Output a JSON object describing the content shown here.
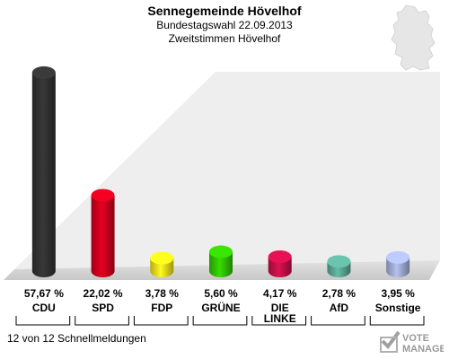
{
  "header": {
    "title": "Sennegemeinde Hövelhof",
    "subtitle1": "Bundestagswahl 22.09.2013",
    "subtitle2": "Zweitstimmen Hövelhof"
  },
  "footer": {
    "text": "12 von 12 Schnellmeldungen"
  },
  "logo": {
    "line1": "VOTE",
    "line2": "MANAGER"
  },
  "chart_data": {
    "type": "bar",
    "title": "Sennegemeinde Hövelhof",
    "categories": [
      "CDU",
      "SPD",
      "FDP",
      "GRÜNE",
      "DIE LINKE",
      "AfD",
      "Sonstige"
    ],
    "values": [
      57.67,
      22.02,
      3.78,
      5.6,
      4.17,
      2.78,
      3.95
    ],
    "value_labels": [
      "57,67 %",
      "22,02 %",
      "3,78 %",
      "5,60 %",
      "4,17 %",
      "2,78 %",
      "3,95 %"
    ],
    "colors": [
      "#333333",
      "#d3001e",
      "#f5e31a",
      "#32c800",
      "#c8104a",
      "#5dab97",
      "#a5b1dc"
    ],
    "ylim": [
      0,
      60
    ],
    "grid": false,
    "legend": "none"
  }
}
